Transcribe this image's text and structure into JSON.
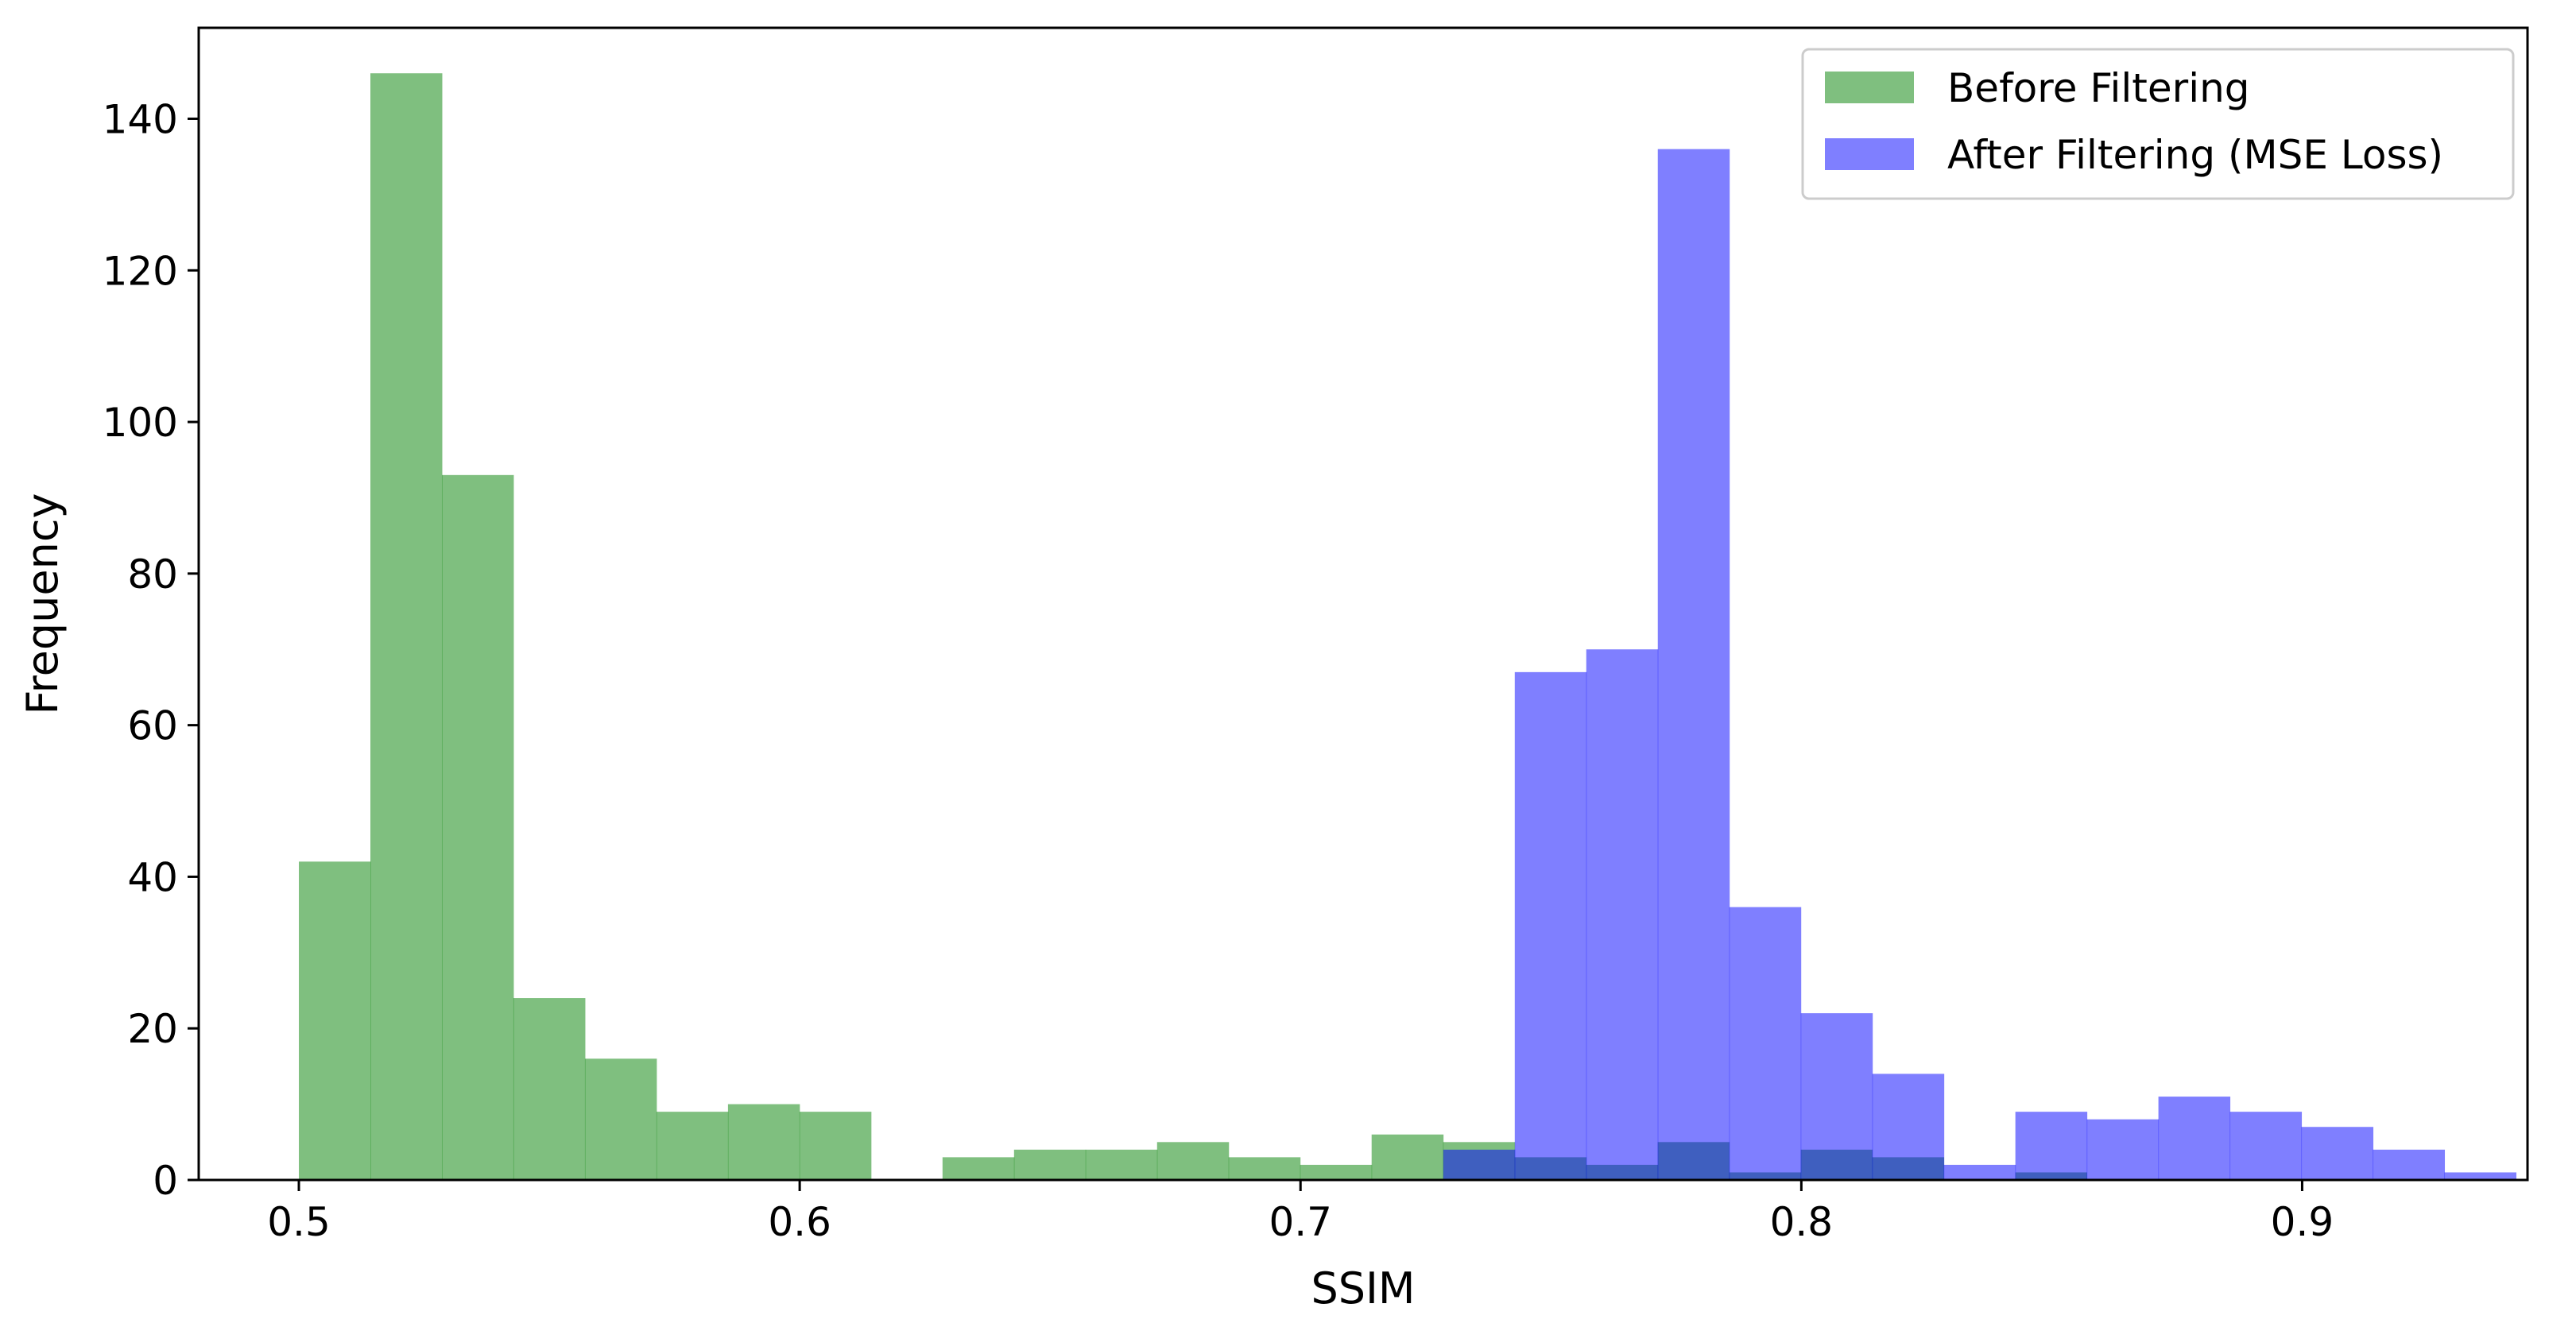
{
  "chart_data": {
    "type": "bar",
    "xlabel": "SSIM",
    "ylabel": "Frequency",
    "xlim": [
      0.48,
      0.945
    ],
    "ylim": [
      0,
      152
    ],
    "xticks": [
      0.5,
      0.6,
      0.7,
      0.8,
      0.9
    ],
    "yticks": [
      0,
      20,
      40,
      60,
      80,
      100,
      120,
      140
    ],
    "legend_position": "top-right",
    "series": [
      {
        "name": "Before Filtering",
        "color": "#008000",
        "opacity": 0.5,
        "bin_start": 0.5,
        "bin_width": 0.01428,
        "values": [
          42,
          146,
          93,
          24,
          16,
          9,
          10,
          9,
          0,
          3,
          4,
          4,
          5,
          3,
          2,
          6,
          5,
          3,
          2,
          5,
          1,
          4,
          3,
          0,
          1
        ]
      },
      {
        "name": "After Filtering (MSE Loss)",
        "color": "#0000ff",
        "opacity": 0.5,
        "bin_start": 0.7285,
        "bin_width": 0.01428,
        "values": [
          4,
          67,
          70,
          136,
          36,
          22,
          14,
          2,
          9,
          8,
          11,
          9,
          7,
          4,
          1
        ]
      }
    ]
  }
}
